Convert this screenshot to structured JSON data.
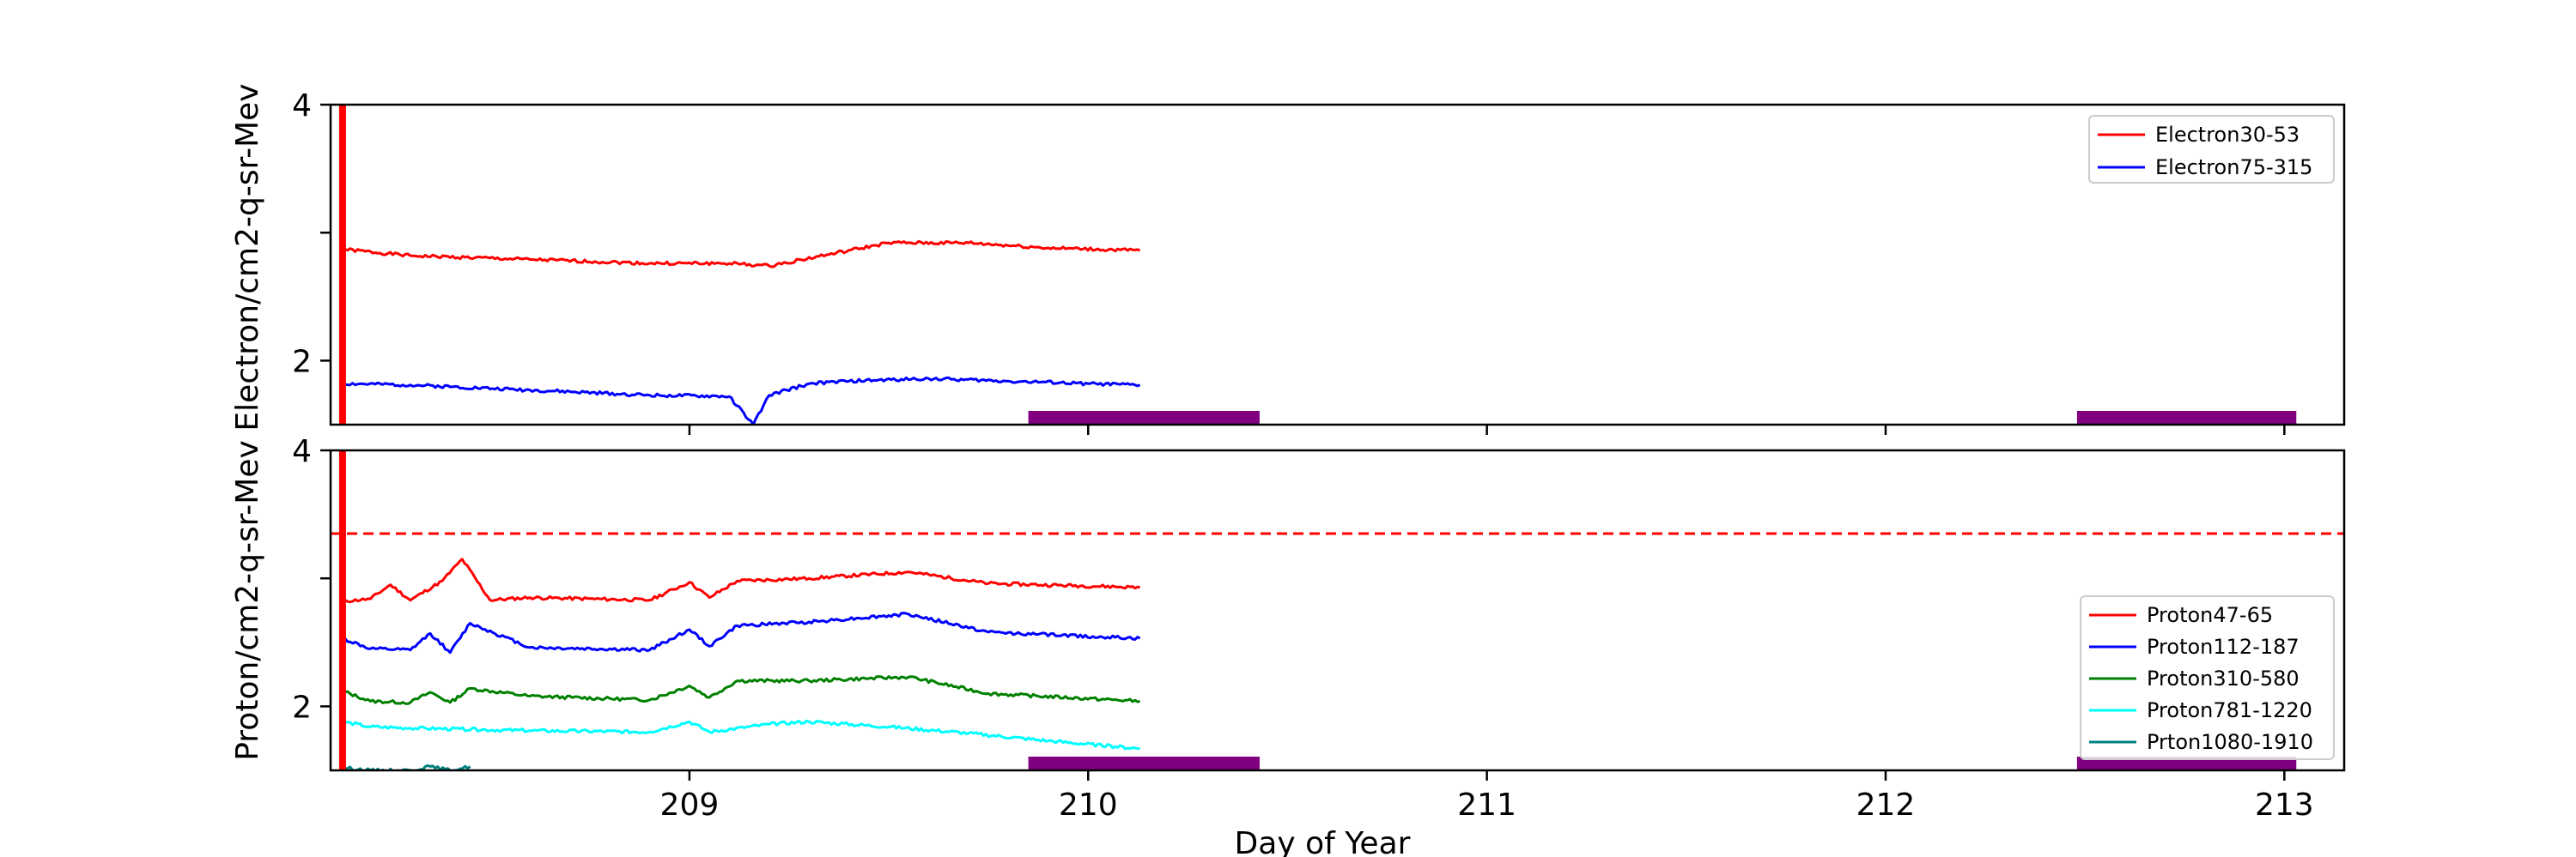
{
  "chart_data": [
    {
      "type": "line",
      "panel": "top",
      "ylabel": "Electron/cm2-q-sr-Mev",
      "xlabel": "",
      "xlim": [
        208.1,
        213.15
      ],
      "ylim": [
        1.5,
        4.0
      ],
      "yticks": [
        2,
        3,
        4
      ],
      "ytick_labels": [
        "2",
        "",
        "4"
      ],
      "xticks": [
        209,
        210,
        211,
        212,
        213
      ],
      "xtick_labels": [
        "",
        "",
        "",
        "",
        ""
      ],
      "grid": false,
      "legend_position": "upper right",
      "vertical_marker": {
        "x": 208.13,
        "color": "#ff0000"
      },
      "shaded_bars": [
        {
          "x0": 209.85,
          "x1": 210.43,
          "color": "#800080"
        },
        {
          "x0": 212.48,
          "x1": 213.03,
          "color": "#800080"
        }
      ],
      "series": [
        {
          "name": "Electron30-53",
          "color": "#ff0000",
          "x": [
            208.13,
            208.3,
            208.6,
            208.9,
            209.1,
            209.2,
            209.35,
            209.5,
            209.7,
            209.9,
            210.13
          ],
          "y": [
            2.87,
            2.82,
            2.79,
            2.76,
            2.76,
            2.74,
            2.83,
            2.92,
            2.92,
            2.88,
            2.86
          ]
        },
        {
          "name": "Electron75-315",
          "color": "#0000ff",
          "x": [
            208.13,
            208.3,
            208.6,
            208.9,
            209.1,
            209.16,
            209.2,
            209.3,
            209.4,
            209.6,
            209.8,
            210.0,
            210.13
          ],
          "y": [
            1.82,
            1.81,
            1.77,
            1.73,
            1.72,
            1.5,
            1.73,
            1.82,
            1.84,
            1.86,
            1.84,
            1.82,
            1.81
          ]
        }
      ]
    },
    {
      "type": "line",
      "panel": "bottom",
      "ylabel": "Proton/cm2-q-sr-Mev",
      "xlabel": "Day of Year",
      "xlim": [
        208.1,
        213.15
      ],
      "ylim": [
        1.5,
        4.0
      ],
      "yticks": [
        2,
        3,
        4
      ],
      "ytick_labels": [
        "2",
        "",
        "4"
      ],
      "xticks": [
        209,
        210,
        211,
        212,
        213
      ],
      "xtick_labels": [
        "209",
        "210",
        "211",
        "212",
        "213"
      ],
      "grid": false,
      "legend_position": "lower right",
      "vertical_marker": {
        "x": 208.13,
        "color": "#ff0000"
      },
      "threshold_line": {
        "y": 3.35,
        "color": "#ff0000",
        "style": "dashed"
      },
      "shaded_bars": [
        {
          "x0": 209.85,
          "x1": 210.43,
          "color": "#800080"
        },
        {
          "x0": 212.48,
          "x1": 213.03,
          "color": "#800080"
        }
      ],
      "series": [
        {
          "name": "Proton47-65",
          "color": "#ff0000",
          "x": [
            208.13,
            208.2,
            208.25,
            208.3,
            208.38,
            208.43,
            208.5,
            208.6,
            208.9,
            209.0,
            209.05,
            209.12,
            209.3,
            209.55,
            209.75,
            210.13
          ],
          "y": [
            2.82,
            2.84,
            2.95,
            2.83,
            2.98,
            3.15,
            2.83,
            2.85,
            2.83,
            2.97,
            2.85,
            2.98,
            3.0,
            3.05,
            2.96,
            2.93
          ]
        },
        {
          "name": "Proton112-187",
          "color": "#0000ff",
          "x": [
            208.13,
            208.2,
            208.3,
            208.35,
            208.4,
            208.45,
            208.6,
            208.9,
            209.0,
            209.05,
            209.12,
            209.3,
            209.55,
            209.75,
            210.13
          ],
          "y": [
            2.53,
            2.45,
            2.44,
            2.57,
            2.42,
            2.65,
            2.46,
            2.44,
            2.6,
            2.47,
            2.63,
            2.66,
            2.72,
            2.58,
            2.53
          ]
        },
        {
          "name": "Proton310-580",
          "color": "#008000",
          "x": [
            208.13,
            208.2,
            208.3,
            208.35,
            208.4,
            208.45,
            208.6,
            208.9,
            209.0,
            209.05,
            209.12,
            209.3,
            209.55,
            209.75,
            210.13
          ],
          "y": [
            2.12,
            2.04,
            2.03,
            2.11,
            2.03,
            2.14,
            2.08,
            2.05,
            2.16,
            2.07,
            2.2,
            2.2,
            2.23,
            2.1,
            2.04
          ]
        },
        {
          "name": "Proton781-1220",
          "color": "#00ffff",
          "x": [
            208.13,
            208.2,
            208.3,
            208.6,
            208.9,
            209.0,
            209.05,
            209.2,
            209.3,
            209.5,
            209.7,
            209.9,
            210.13
          ],
          "y": [
            1.88,
            1.84,
            1.83,
            1.81,
            1.8,
            1.88,
            1.8,
            1.86,
            1.88,
            1.84,
            1.79,
            1.73,
            1.67
          ]
        },
        {
          "name": "Prton1080-1910",
          "color": "#008080",
          "x": [
            208.13,
            208.2,
            208.3,
            208.35,
            208.4,
            208.45
          ],
          "y": [
            1.52,
            1.5,
            1.5,
            1.53,
            1.5,
            1.53
          ]
        }
      ]
    }
  ]
}
